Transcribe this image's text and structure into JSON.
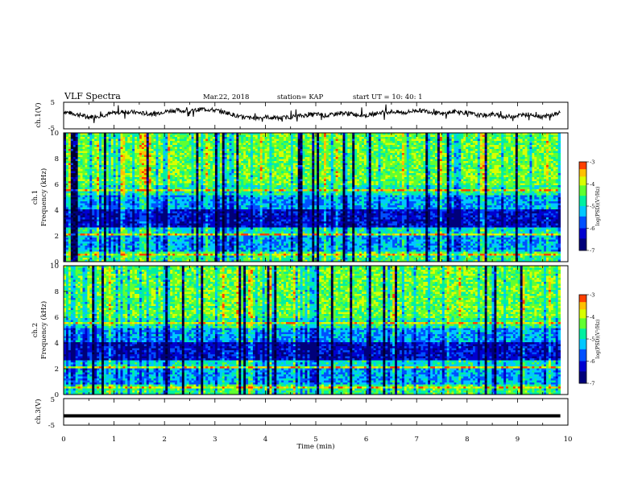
{
  "header": {
    "title": "VLF Spectra",
    "date": "Mar.22, 2018",
    "station": "station= KAP",
    "start_ut": "start  UT =   10: 40: 1"
  },
  "colors": {
    "axis": "#000000",
    "waveform": "#000000",
    "colormap": [
      "#000000",
      "#0000a0",
      "#0028ff",
      "#00c8ff",
      "#00ff80",
      "#7cff00",
      "#ffff00",
      "#ff8000",
      "#ff0000",
      "#ffffff"
    ]
  },
  "chart_data": [
    {
      "panel": "waveform-ch1",
      "type": "line",
      "ylabel": "ch.1(V)",
      "ylim": [
        -5,
        5
      ],
      "yticks": [
        "5",
        "-5"
      ],
      "xlim": [
        0,
        10
      ],
      "x": [
        0,
        0.25,
        0.5,
        0.75,
        1.0,
        1.25,
        1.5,
        1.75,
        2.0,
        2.25,
        2.5,
        2.75,
        3.0,
        3.25,
        3.5,
        3.75,
        4.0,
        4.25,
        4.5,
        4.75,
        5.0,
        5.25,
        5.5,
        5.75,
        6.0,
        6.25,
        6.5,
        6.75,
        7.0,
        7.25,
        7.5,
        7.75,
        8.0,
        8.25,
        8.5,
        8.75,
        9.0,
        9.25,
        9.5,
        9.75,
        9.85
      ],
      "y": [
        1.5,
        0.5,
        -0.5,
        0.0,
        1.0,
        1.5,
        1.0,
        0.5,
        1.5,
        2.0,
        1.5,
        2.5,
        2.0,
        1.0,
        -0.5,
        -1.0,
        -0.5,
        -1.0,
        -0.5,
        0.0,
        0.5,
        0.0,
        1.0,
        0.5,
        0.0,
        1.0,
        1.5,
        1.0,
        2.0,
        1.5,
        0.5,
        1.5,
        1.0,
        0.0,
        0.5,
        -0.5,
        0.0,
        0.5,
        -0.5,
        0.5,
        1.0
      ]
    },
    {
      "panel": "spectrogram-ch1",
      "type": "heatmap",
      "ylabel": "ch.1\nFrequency (kHz)",
      "ylim": [
        0,
        10
      ],
      "yticks": [
        "0",
        "2",
        "4",
        "6",
        "8",
        "10"
      ],
      "xlim": [
        0,
        10
      ],
      "data_extent_min": 9.85,
      "colorbar": {
        "label": "log(PSD)(V²/Hz)",
        "range": [
          -7,
          -3
        ],
        "ticks": [
          "-3",
          "-4",
          "-5",
          "-6",
          "-7"
        ]
      }
    },
    {
      "panel": "spectrogram-ch2",
      "type": "heatmap",
      "ylabel": "ch.2\nFrequency (kHz)",
      "ylim": [
        0,
        10
      ],
      "yticks": [
        "0",
        "2",
        "4",
        "6",
        "8",
        "10"
      ],
      "xlim": [
        0,
        10
      ],
      "data_extent_min": 9.85,
      "colorbar": {
        "label": "log(PSD)(V²/Hz)",
        "range": [
          -7,
          -3
        ],
        "ticks": [
          "-3",
          "-4",
          "-5",
          "-6",
          "-7"
        ]
      }
    },
    {
      "panel": "waveform-ch3",
      "type": "line",
      "ylabel": "ch.3(V)",
      "ylim": [
        -5,
        5
      ],
      "yticks": [
        "5",
        "-5"
      ],
      "xlim": [
        0,
        10
      ],
      "x": [
        0,
        9.85
      ],
      "y": [
        -1.5,
        -1.5
      ]
    }
  ],
  "x_axis": {
    "label": "Time (min)",
    "ticks": [
      "0",
      "1",
      "2",
      "3",
      "4",
      "5",
      "6",
      "7",
      "8",
      "9",
      "10"
    ]
  }
}
